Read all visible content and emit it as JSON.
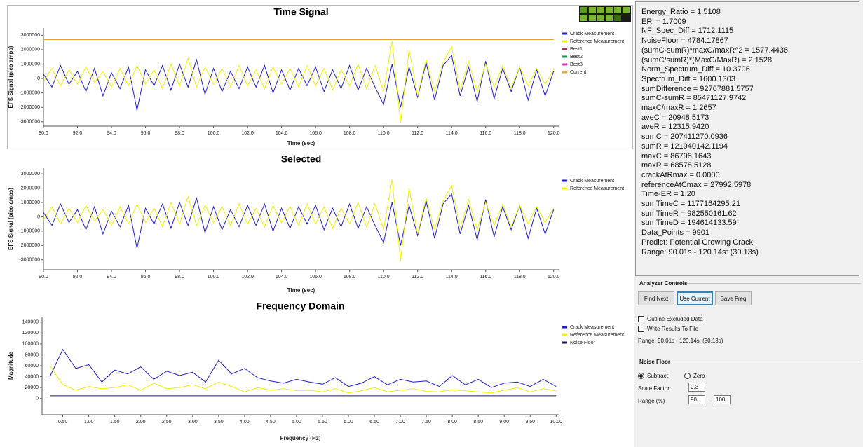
{
  "chart_data": [
    {
      "type": "line",
      "title": "Time Signal",
      "x_label": "Time (sec)",
      "y_label": "EFS Signal (pico amps)",
      "x": [
        90,
        90.5,
        91,
        91.5,
        92,
        92.5,
        93,
        93.5,
        94,
        94.5,
        95,
        95.5,
        96,
        96.5,
        97,
        97.5,
        98,
        98.5,
        99,
        99.5,
        100,
        100.5,
        101,
        101.5,
        102,
        102.5,
        103,
        103.5,
        104,
        104.5,
        105,
        105.5,
        106,
        106.5,
        107,
        107.5,
        108,
        108.5,
        109,
        109.5,
        110,
        110.5,
        111,
        111.5,
        112,
        112.5,
        113,
        113.5,
        114,
        114.5,
        115,
        115.5,
        116,
        116.5,
        117,
        117.5,
        118,
        118.5,
        119,
        119.5,
        120
      ],
      "series": [
        {
          "name": "Crack Measurement",
          "color": "#1f1fc8",
          "values": [
            300000,
            -600000,
            900000,
            -400000,
            500000,
            -900000,
            700000,
            -1200000,
            400000,
            -700000,
            800000,
            -2200000,
            600000,
            -500000,
            900000,
            -800000,
            1000000,
            -600000,
            1300000,
            -1100000,
            700000,
            -900000,
            500000,
            -700000,
            800000,
            -600000,
            900000,
            -1000000,
            600000,
            -800000,
            700000,
            -500000,
            800000,
            -900000,
            600000,
            -700000,
            900000,
            -800000,
            700000,
            -600000,
            -1800000,
            1000000,
            -2000000,
            800000,
            -1300000,
            1100000,
            -1500000,
            900000,
            1600000,
            -1200000,
            800000,
            -1600000,
            1200000,
            -1400000,
            700000,
            -900000,
            800000,
            -1500000,
            600000,
            -1200000,
            500000
          ]
        },
        {
          "name": "Reference Measurement",
          "color": "#f2f200",
          "values": [
            -200000,
            700000,
            -500000,
            600000,
            -400000,
            800000,
            -300000,
            500000,
            -600000,
            700000,
            -500000,
            900000,
            -400000,
            600000,
            -700000,
            1000000,
            -500000,
            1400000,
            -600000,
            800000,
            -400000,
            700000,
            -600000,
            900000,
            -500000,
            600000,
            -700000,
            800000,
            -400000,
            700000,
            -600000,
            900000,
            -500000,
            700000,
            -800000,
            600000,
            -500000,
            1000000,
            -700000,
            900000,
            -900000,
            2600000,
            -3100000,
            2000000,
            -1200000,
            1300000,
            -900000,
            1100000,
            2200000,
            -800000,
            1200000,
            -900000,
            1000000,
            -600000,
            900000,
            -700000,
            800000,
            -500000,
            700000,
            -400000,
            600000
          ]
        },
        {
          "name": "Best1",
          "color": "#b03060"
        },
        {
          "name": "Best2",
          "color": "#2e8b57"
        },
        {
          "name": "Best3",
          "color": "#d040c0"
        },
        {
          "name": "Current",
          "color": "#f0a030",
          "values": [
            2700000,
            2700000,
            2700000,
            2700000,
            2700000,
            2700000,
            2700000,
            2700000,
            2700000,
            2700000,
            2700000,
            2700000,
            2700000,
            2700000,
            2700000,
            2700000,
            2700000,
            2700000,
            2700000,
            2700000,
            2700000,
            2700000,
            2700000,
            2700000,
            2700000,
            2700000,
            2700000,
            2700000,
            2700000,
            2700000,
            2700000,
            2700000,
            2700000,
            2700000,
            2700000,
            2700000,
            2700000,
            2700000,
            2700000,
            2700000,
            2700000,
            2700000,
            2700000,
            2700000,
            2700000,
            2700000,
            2700000,
            2700000,
            2700000,
            2700000,
            2700000,
            2700000,
            2700000,
            2700000,
            2700000,
            2700000,
            2700000,
            2700000,
            2700000,
            2700000,
            2700000
          ]
        }
      ],
      "xlim": [
        90,
        120.3
      ],
      "ylim": [
        -3300000,
        3500000
      ],
      "xticks": [
        {
          "value": 90,
          "label": "90.0"
        },
        {
          "value": 92,
          "label": "92.0"
        },
        {
          "value": 94,
          "label": "94.0"
        },
        {
          "value": 96,
          "label": "96.0"
        },
        {
          "value": 98,
          "label": "98.0"
        },
        {
          "value": 100,
          "label": "100.0"
        },
        {
          "value": 102,
          "label": "102.0"
        },
        {
          "value": 104,
          "label": "104.0"
        },
        {
          "value": 106,
          "label": "106.0"
        },
        {
          "value": 108,
          "label": "108.0"
        },
        {
          "value": 110,
          "label": "110.0"
        },
        {
          "value": 112,
          "label": "112.0"
        },
        {
          "value": 114,
          "label": "114.0"
        },
        {
          "value": 116,
          "label": "116.0"
        },
        {
          "value": 118,
          "label": "118.0"
        },
        {
          "value": 120,
          "label": "120.0"
        }
      ],
      "yticks": [
        -3000000,
        -2000000,
        -1000000,
        0,
        1000000,
        2000000,
        3000000
      ]
    },
    {
      "type": "line",
      "title": "Selected",
      "x_label": "Time (sec)",
      "y_label": "EFS Signal (pico amps)",
      "x": [
        90,
        90.5,
        91,
        91.5,
        92,
        92.5,
        93,
        93.5,
        94,
        94.5,
        95,
        95.5,
        96,
        96.5,
        97,
        97.5,
        98,
        98.5,
        99,
        99.5,
        100,
        100.5,
        101,
        101.5,
        102,
        102.5,
        103,
        103.5,
        104,
        104.5,
        105,
        105.5,
        106,
        106.5,
        107,
        107.5,
        108,
        108.5,
        109,
        109.5,
        110,
        110.5,
        111,
        111.5,
        112,
        112.5,
        113,
        113.5,
        114,
        114.5,
        115,
        115.5,
        116,
        116.5,
        117,
        117.5,
        118,
        118.5,
        119,
        119.5,
        120
      ],
      "series": [
        {
          "name": "Crack Measurement",
          "color": "#1f1fc8",
          "values": [
            300000,
            -600000,
            900000,
            -400000,
            500000,
            -900000,
            700000,
            -1200000,
            400000,
            -700000,
            800000,
            -2200000,
            600000,
            -500000,
            900000,
            -800000,
            1000000,
            -600000,
            1300000,
            -1100000,
            700000,
            -900000,
            500000,
            -700000,
            800000,
            -600000,
            900000,
            -1000000,
            600000,
            -800000,
            700000,
            -500000,
            800000,
            -900000,
            600000,
            -700000,
            900000,
            -800000,
            700000,
            -600000,
            -1800000,
            1000000,
            -2000000,
            800000,
            -1300000,
            1100000,
            -1500000,
            900000,
            1600000,
            -1200000,
            800000,
            -1600000,
            1200000,
            -1400000,
            700000,
            -900000,
            800000,
            -1500000,
            600000,
            -1200000,
            500000
          ]
        },
        {
          "name": "Reference Measurement",
          "color": "#f2f200",
          "values": [
            -200000,
            700000,
            -500000,
            600000,
            -400000,
            800000,
            -300000,
            500000,
            -600000,
            700000,
            -500000,
            900000,
            -400000,
            600000,
            -700000,
            1000000,
            -500000,
            1400000,
            -600000,
            800000,
            -400000,
            700000,
            -600000,
            900000,
            -500000,
            600000,
            -700000,
            800000,
            -400000,
            700000,
            -600000,
            900000,
            -500000,
            700000,
            -800000,
            600000,
            -500000,
            1000000,
            -700000,
            900000,
            -900000,
            2600000,
            -3100000,
            2000000,
            -1200000,
            1300000,
            -900000,
            1100000,
            2200000,
            -800000,
            1200000,
            -900000,
            1000000,
            -600000,
            900000,
            -700000,
            800000,
            -500000,
            700000,
            -400000,
            600000
          ]
        }
      ],
      "xlim": [
        90,
        120.3
      ],
      "ylim": [
        -3700000,
        3400000
      ],
      "xticks": [
        {
          "value": 90,
          "label": "90.0"
        },
        {
          "value": 92,
          "label": "92.0"
        },
        {
          "value": 94,
          "label": "94.0"
        },
        {
          "value": 96,
          "label": "96.0"
        },
        {
          "value": 98,
          "label": "98.0"
        },
        {
          "value": 100,
          "label": "100.0"
        },
        {
          "value": 102,
          "label": "102.0"
        },
        {
          "value": 104,
          "label": "104.0"
        },
        {
          "value": 106,
          "label": "106.0"
        },
        {
          "value": 108,
          "label": "108.0"
        },
        {
          "value": 110,
          "label": "110.0"
        },
        {
          "value": 112,
          "label": "112.0"
        },
        {
          "value": 114,
          "label": "114.0"
        },
        {
          "value": 116,
          "label": "116.0"
        },
        {
          "value": 118,
          "label": "118.0"
        },
        {
          "value": 120,
          "label": "120.0"
        }
      ],
      "yticks": [
        -3000000,
        -2000000,
        -1000000,
        0,
        1000000,
        2000000,
        3000000
      ]
    },
    {
      "type": "line",
      "title": "Frequency Domain",
      "x_label": "Frequency (Hz)",
      "y_label": "Magnitude",
      "x": [
        0.25,
        0.5,
        0.75,
        1,
        1.25,
        1.5,
        1.75,
        2,
        2.25,
        2.5,
        2.75,
        3,
        3.25,
        3.5,
        3.75,
        4,
        4.25,
        4.5,
        4.75,
        5,
        5.25,
        5.5,
        5.75,
        6,
        6.25,
        6.5,
        6.75,
        7,
        7.25,
        7.5,
        7.75,
        8,
        8.25,
        8.5,
        8.75,
        9,
        9.25,
        9.5,
        9.75,
        10
      ],
      "series": [
        {
          "name": "Crack Measurement",
          "color": "#1f1fc8",
          "values": [
            40000,
            90000,
            55000,
            62000,
            30000,
            52000,
            45000,
            58000,
            35000,
            50000,
            42000,
            48000,
            30000,
            70000,
            45000,
            55000,
            38000,
            32000,
            28000,
            35000,
            30000,
            26000,
            38000,
            22000,
            28000,
            40000,
            25000,
            35000,
            30000,
            32000,
            22000,
            42000,
            25000,
            35000,
            20000,
            28000,
            30000,
            22000,
            35000,
            22000
          ]
        },
        {
          "name": "Reference Measurement",
          "color": "#f2f200",
          "values": [
            60000,
            25000,
            15000,
            22000,
            18000,
            20000,
            25000,
            15000,
            28000,
            18000,
            20000,
            25000,
            18000,
            30000,
            22000,
            12000,
            20000,
            15000,
            18000,
            14000,
            15000,
            12000,
            18000,
            10000,
            14000,
            20000,
            12000,
            15000,
            18000,
            13000,
            12000,
            16000,
            14000,
            12000,
            10000,
            15000,
            20000,
            12000,
            18000,
            14000
          ]
        },
        {
          "name": "Noise Floor",
          "color": "#1a1a60",
          "values": [
            4784,
            4784,
            4784,
            4784,
            4784,
            4784,
            4784,
            4784,
            4784,
            4784,
            4784,
            4784,
            4784,
            4784,
            4784,
            4784,
            4784,
            4784,
            4784,
            4784,
            4784,
            4784,
            4784,
            4784,
            4784,
            4784,
            4784,
            4784,
            4784,
            4784,
            4784,
            4784,
            4784,
            4784,
            4784,
            4784,
            4784,
            4784,
            4784,
            4784
          ]
        }
      ],
      "xlim": [
        0.1,
        10.05
      ],
      "ylim": [
        -30000.0,
        150000
      ],
      "xticks": [
        {
          "value": 0.5,
          "label": "0.50"
        },
        {
          "value": 1,
          "label": "1.00"
        },
        {
          "value": 1.5,
          "label": "1.50"
        },
        {
          "value": 2,
          "label": "2.00"
        },
        {
          "value": 2.5,
          "label": "2.50"
        },
        {
          "value": 3,
          "label": "3.00"
        },
        {
          "value": 3.5,
          "label": "3.50"
        },
        {
          "value": 4,
          "label": "4.00"
        },
        {
          "value": 4.5,
          "label": "4.50"
        },
        {
          "value": 5,
          "label": "5.00"
        },
        {
          "value": 5.5,
          "label": "5.50"
        },
        {
          "value": 6,
          "label": "6.00"
        },
        {
          "value": 6.5,
          "label": "6.50"
        },
        {
          "value": 7,
          "label": "7.00"
        },
        {
          "value": 7.5,
          "label": "7.50"
        },
        {
          "value": 8,
          "label": "8.00"
        },
        {
          "value": 8.5,
          "label": "8.50"
        },
        {
          "value": 9,
          "label": "9.00"
        },
        {
          "value": 9.5,
          "label": "9.50"
        },
        {
          "value": 10,
          "label": "10.00"
        }
      ],
      "yticks": [
        0,
        20000,
        40000,
        60000,
        80000,
        100000,
        120000,
        140000
      ]
    }
  ],
  "metrics": [
    "Energy_Ratio = 1.5108",
    "ER' = 1.7009",
    "NF_Spec_Diff = 1712.1115",
    "NoiseFloor = 4784.17867",
    "(sumC-sumR)*maxC/maxR^2 = 1577.4436",
    "(sumC/sumR)*(MaxC/MaxR) = 2.1528",
    "Norm_Spectrum_Diff = 10.3706",
    "Spectrum_Diff = 1600.1303",
    "sumDifference = 92767881.5757",
    "sumC-sumR = 85471127.9742",
    "maxC/maxR = 1.2657",
    "aveC = 20948.5173",
    "aveR = 12315.9420",
    "sumC = 207411270.0936",
    "sumR = 121940142.1194",
    "maxC = 86798.1643",
    "maxR = 68578.5128",
    "crackAtRmax = 0.0000",
    "referenceAtCmax = 27992.5978",
    "Time-ER  = 1.20",
    "sumTimeC = 1177164295.21",
    "sumTimeR = 982550161.62",
    "sumTimeD = 194614133.59",
    "Data_Points = 9901",
    "Predict: Potential Growing Crack",
    "Range: 90.01s - 120.14s:  (30.13s)"
  ],
  "analyzer_controls": {
    "title": "Analyzer Controls",
    "buttons": [
      "Find Next",
      "Use Current",
      "Save Freq"
    ],
    "checkboxes": [
      "Outline Excluded Data",
      "Write Results To File"
    ],
    "range_text": "Range: 90.01s - 120.14s:  (30.13s)"
  },
  "noise_floor": {
    "title": "Noise Floor",
    "radios": [
      "Subtract",
      "Zero"
    ],
    "scale_label": "Scale Factor:",
    "scale_value": "0.3",
    "range_label": "Range (%)",
    "range_min": "90",
    "range_sep": "-",
    "range_max": "100"
  }
}
